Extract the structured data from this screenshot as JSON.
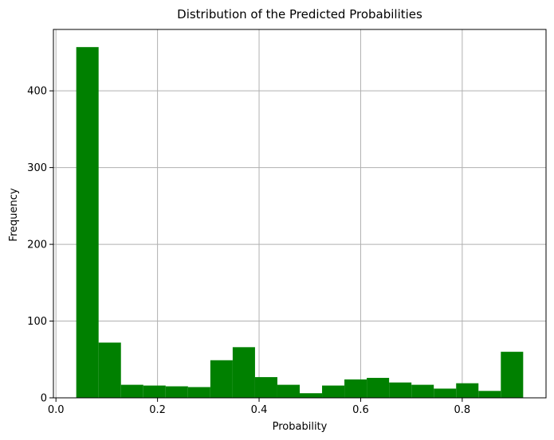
{
  "chart_data": {
    "type": "bar",
    "title": "Distribution of the Predicted Probabilities",
    "xlabel": "Probability",
    "ylabel": "Frequency",
    "xlim": [
      -0.005,
      0.965
    ],
    "ylim": [
      0,
      480
    ],
    "grid": true,
    "bar_color": "#008000",
    "bins": [
      {
        "x0": 0.04,
        "x1": 0.084,
        "value": 457
      },
      {
        "x0": 0.084,
        "x1": 0.128,
        "value": 72
      },
      {
        "x0": 0.128,
        "x1": 0.172,
        "value": 17
      },
      {
        "x0": 0.172,
        "x1": 0.216,
        "value": 16
      },
      {
        "x0": 0.216,
        "x1": 0.26,
        "value": 15
      },
      {
        "x0": 0.26,
        "x1": 0.304,
        "value": 14
      },
      {
        "x0": 0.304,
        "x1": 0.348,
        "value": 49
      },
      {
        "x0": 0.348,
        "x1": 0.392,
        "value": 66
      },
      {
        "x0": 0.392,
        "x1": 0.436,
        "value": 27
      },
      {
        "x0": 0.436,
        "x1": 0.48,
        "value": 17
      },
      {
        "x0": 0.48,
        "x1": 0.524,
        "value": 6
      },
      {
        "x0": 0.524,
        "x1": 0.568,
        "value": 16
      },
      {
        "x0": 0.568,
        "x1": 0.612,
        "value": 24
      },
      {
        "x0": 0.612,
        "x1": 0.656,
        "value": 26
      },
      {
        "x0": 0.656,
        "x1": 0.7,
        "value": 20
      },
      {
        "x0": 0.7,
        "x1": 0.744,
        "value": 17
      },
      {
        "x0": 0.744,
        "x1": 0.788,
        "value": 12
      },
      {
        "x0": 0.788,
        "x1": 0.832,
        "value": 19
      },
      {
        "x0": 0.832,
        "x1": 0.876,
        "value": 9
      },
      {
        "x0": 0.876,
        "x1": 0.92,
        "value": 60
      }
    ],
    "x_ticks": [
      {
        "value": 0.0,
        "label": "0.0"
      },
      {
        "value": 0.2,
        "label": "0.2"
      },
      {
        "value": 0.4,
        "label": "0.4"
      },
      {
        "value": 0.6,
        "label": "0.6"
      },
      {
        "value": 0.8,
        "label": "0.8"
      }
    ],
    "y_ticks": [
      {
        "value": 0,
        "label": "0"
      },
      {
        "value": 100,
        "label": "100"
      },
      {
        "value": 200,
        "label": "200"
      },
      {
        "value": 300,
        "label": "300"
      },
      {
        "value": 400,
        "label": "400"
      }
    ]
  }
}
